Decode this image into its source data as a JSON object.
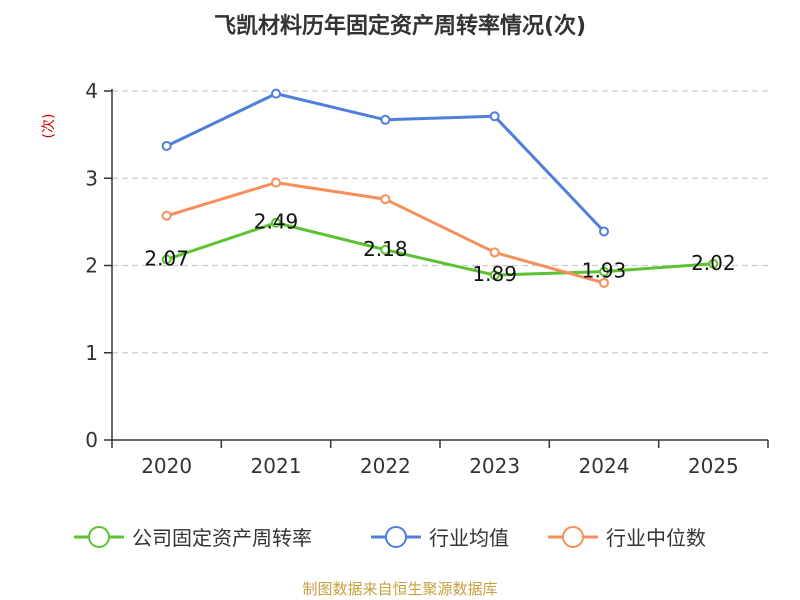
{
  "chart_data": {
    "type": "line",
    "title": "飞凯材料历年固定资产周转率情况(次)",
    "ylabel": "(次)",
    "xlabel": "",
    "categories": [
      "2020",
      "2021",
      "2022",
      "2023",
      "2024",
      "2025"
    ],
    "ylim": [
      0,
      4
    ],
    "yticks": [
      "0",
      "1",
      "2",
      "3",
      "4"
    ],
    "grid": true,
    "legend_position": "bottom",
    "series": [
      {
        "name": "公司固定资产周转率",
        "color": "#5cc231",
        "values": [
          2.07,
          2.49,
          2.18,
          1.89,
          1.93,
          2.02
        ],
        "labels": [
          "2.07",
          "2.49",
          "2.18",
          "1.89",
          "1.93",
          "2.02"
        ]
      },
      {
        "name": "行业均值",
        "color": "#4f7fdb",
        "values": [
          3.37,
          3.97,
          3.67,
          3.71,
          2.39,
          null
        ]
      },
      {
        "name": "行业中位数",
        "color": "#f5905a",
        "values": [
          2.57,
          2.95,
          2.76,
          2.15,
          1.8,
          null
        ]
      }
    ]
  },
  "source": "制图数据来自恒生聚源数据库",
  "colors": {
    "ylabel": "#cc0000",
    "source": "#c8a040",
    "axis": "#333333",
    "grid": "#cccccc"
  }
}
